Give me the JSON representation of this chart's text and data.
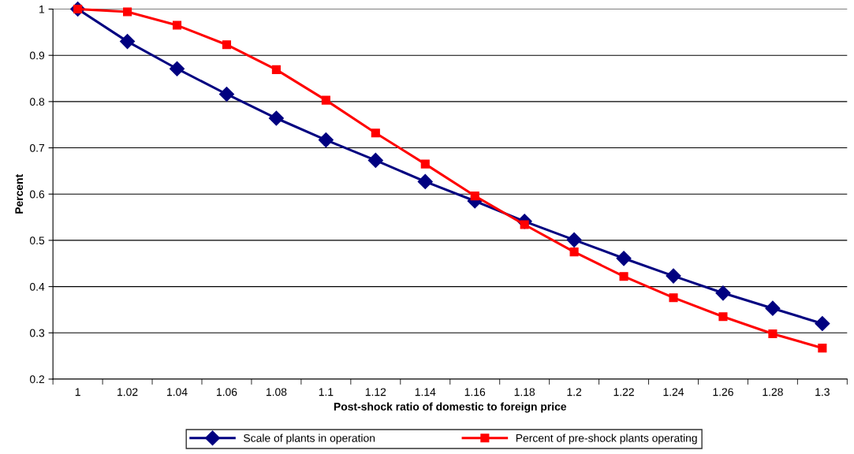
{
  "chart_data": {
    "type": "line",
    "xlabel": "Post-shock ratio of domestic to foreign price",
    "ylabel": "Percent",
    "categories": [
      "1",
      "1.02",
      "1.04",
      "1.06",
      "1.08",
      "1.1",
      "1.12",
      "1.14",
      "1.16",
      "1.18",
      "1.2",
      "1.22",
      "1.24",
      "1.26",
      "1.28",
      "1.3"
    ],
    "series": [
      {
        "name": "Scale of plants in operation",
        "color": "#000080",
        "marker": "diamond",
        "values": [
          1,
          0.93,
          0.871,
          0.816,
          0.764,
          0.717,
          0.673,
          0.627,
          0.585,
          0.541,
          0.501,
          0.461,
          0.423,
          0.386,
          0.353,
          0.32
        ]
      },
      {
        "name": "Percent of pre-shock plants operating",
        "color": "#ff0000",
        "marker": "square",
        "values": [
          1,
          0.994,
          0.965,
          0.923,
          0.869,
          0.803,
          0.732,
          0.665,
          0.596,
          0.534,
          0.475,
          0.422,
          0.376,
          0.335,
          0.298,
          0.267
        ]
      }
    ],
    "ylim": [
      0.2,
      1
    ],
    "yticks": [
      0.2,
      0.3,
      0.4,
      0.5,
      0.6,
      0.7,
      0.8,
      0.9,
      1
    ],
    "grid": "y",
    "legend": "bottom"
  }
}
